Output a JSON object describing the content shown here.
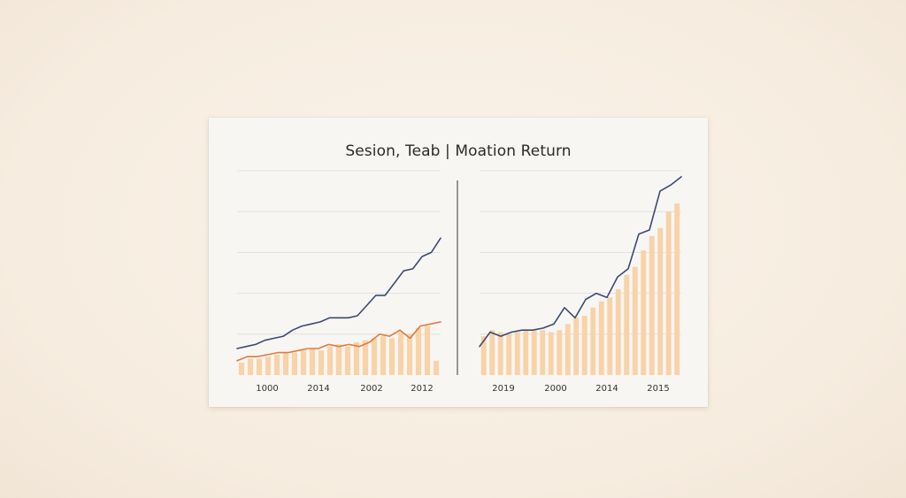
{
  "title": "Sesion, Teab | Moation Return",
  "colors": {
    "line_navy": "#3c4a72",
    "line_orange": "#e07a3c",
    "bar_fill": "#f8d3a8",
    "grid": "#dcdcdc",
    "divider": "#555555",
    "card_background": "#f8f6f3",
    "page_background": "#f6ecdf"
  },
  "chart_data": [
    {
      "type": "bar+line",
      "panel": "left",
      "x_tick_labels": [
        "1000",
        "2014",
        "2002",
        "2012"
      ],
      "ylim": [
        0,
        100
      ],
      "grid": true,
      "series": [
        {
          "kind": "bar",
          "values": [
            6,
            8,
            8,
            9,
            10,
            11,
            11,
            12,
            13,
            12,
            14,
            15,
            14,
            16,
            17,
            18,
            19,
            18,
            21,
            20,
            23,
            24,
            7
          ]
        },
        {
          "kind": "line",
          "color": "orange",
          "values": [
            7,
            9,
            9,
            10,
            11,
            11,
            12,
            13,
            13,
            15,
            14,
            15,
            14,
            16,
            20,
            19,
            22,
            18,
            24,
            25,
            26
          ]
        },
        {
          "kind": "line",
          "color": "navy",
          "values": [
            13,
            14,
            15,
            17,
            18,
            19,
            22,
            24,
            25,
            26,
            28,
            28,
            28,
            29,
            34,
            39,
            39,
            45,
            51,
            52,
            58,
            60,
            67
          ]
        }
      ]
    },
    {
      "type": "bar+line",
      "panel": "right",
      "x_tick_labels": [
        "2019",
        "2000",
        "2014",
        "2015"
      ],
      "ylim": [
        0,
        100
      ],
      "grid": true,
      "series": [
        {
          "kind": "bar",
          "values": [
            19,
            22,
            21,
            20,
            21,
            22,
            22,
            22,
            21,
            22,
            25,
            28,
            29,
            33,
            36,
            38,
            42,
            49,
            53,
            61,
            68,
            72,
            80,
            84
          ]
        },
        {
          "kind": "line",
          "color": "navy",
          "values": [
            14,
            21,
            19,
            21,
            22,
            22,
            23,
            25,
            33,
            28,
            37,
            40,
            38,
            48,
            52,
            69,
            71,
            90,
            93,
            97
          ]
        }
      ]
    }
  ]
}
